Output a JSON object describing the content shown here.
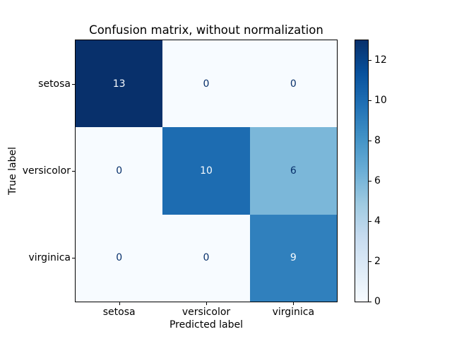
{
  "chart_data": {
    "type": "heatmap",
    "title": "Confusion matrix, without normalization",
    "xlabel": "Predicted label",
    "ylabel": "True label",
    "x_categories": [
      "setosa",
      "versicolor",
      "virginica"
    ],
    "y_categories": [
      "setosa",
      "versicolor",
      "virginica"
    ],
    "matrix": [
      [
        13,
        0,
        0
      ],
      [
        0,
        10,
        6
      ],
      [
        0,
        0,
        9
      ]
    ],
    "value_format": "d",
    "vmin": 0,
    "vmax": 13,
    "colorbar_ticks": [
      0,
      2,
      4,
      6,
      8,
      10,
      12
    ],
    "colormap_name": "Blues",
    "colormap_stops": [
      "#f7fbff",
      "#deebf7",
      "#c6dbef",
      "#9ecae1",
      "#6baed6",
      "#4292c6",
      "#2171b5",
      "#08519c",
      "#08306b"
    ],
    "cell_text_light": "#f7fbff",
    "cell_text_dark": "#08306b",
    "grid": false,
    "legend_position": "right-colorbar",
    "background_color": "#ffffff"
  }
}
